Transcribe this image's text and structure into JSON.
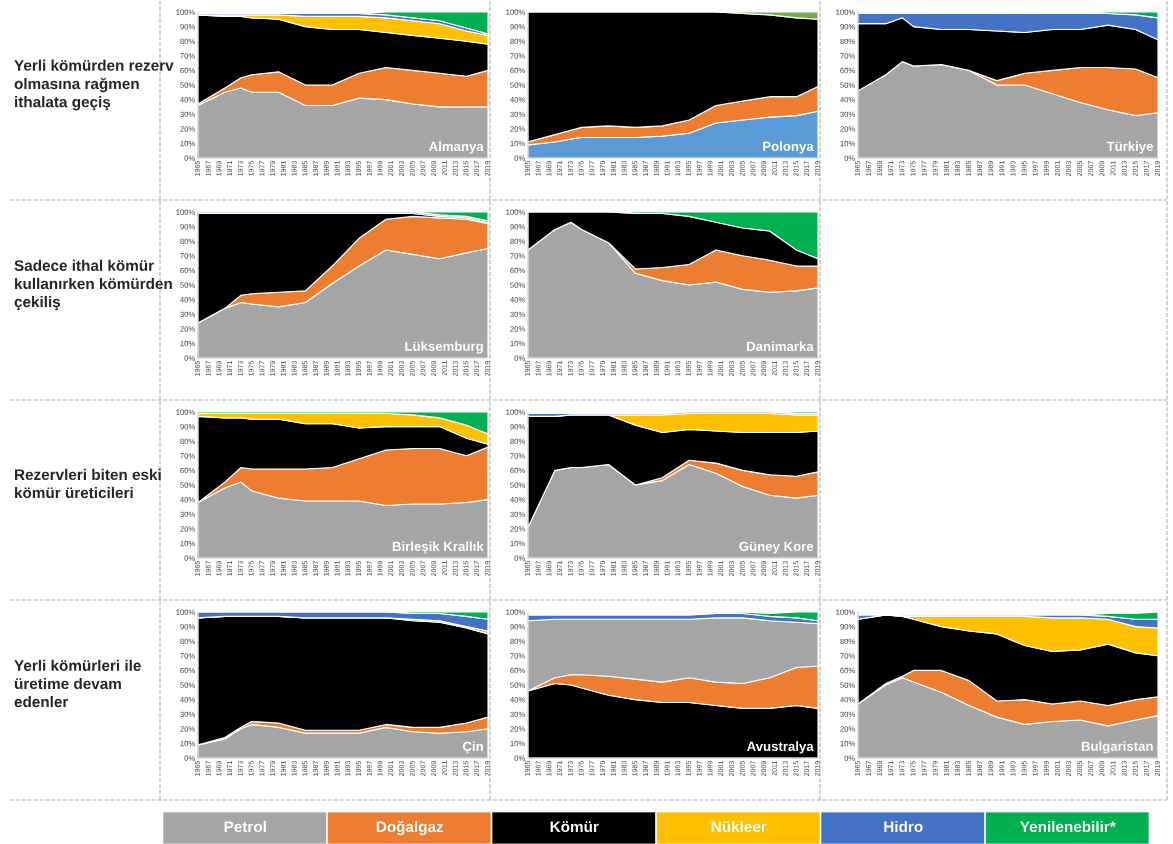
{
  "chart_data": [
    {
      "type": "area",
      "stacked": true,
      "legend": "bottom",
      "x": [
        1965,
        1970,
        1973,
        1975,
        1980,
        1985,
        1990,
        1995,
        2000,
        2005,
        2010,
        2015,
        2019
      ],
      "xlim": [
        1965,
        2019
      ],
      "ylim": [
        0,
        100
      ],
      "yticks": [
        {
          "value": 0,
          "label": "0%"
        },
        {
          "value": 10,
          "label": "10%"
        },
        {
          "value": 20,
          "label": "20%"
        },
        {
          "value": 30,
          "label": "30%"
        },
        {
          "value": 40,
          "label": "40%"
        },
        {
          "value": 50,
          "label": "50%"
        },
        {
          "value": 60,
          "label": "60%"
        },
        {
          "value": 70,
          "label": "70%"
        },
        {
          "value": 80,
          "label": "80%"
        },
        {
          "value": 90,
          "label": "90%"
        },
        {
          "value": 100,
          "label": "100%"
        }
      ],
      "xticks": [
        1965,
        1967,
        1969,
        1971,
        1973,
        1975,
        1977,
        1979,
        1981,
        1983,
        1985,
        1987,
        1989,
        1991,
        1993,
        1995,
        1997,
        1999,
        2001,
        2003,
        2005,
        2007,
        2009,
        2011,
        2013,
        2015,
        2017,
        2019
      ],
      "annotations": [
        "Yerli kömürden rezerv olmasına rağmen ithalata geçiş",
        "Almanya"
      ],
      "series": [
        {
          "name": "Petrol",
          "color": "#a5a5a5",
          "values": [
            36,
            45,
            48,
            45,
            45,
            36,
            36,
            41,
            40,
            37,
            35,
            35,
            35
          ]
        },
        {
          "name": "Doğalgaz",
          "color": "#ed7d31",
          "values": [
            1,
            3,
            7,
            12,
            14,
            14,
            14,
            17,
            22,
            23,
            23,
            21,
            25
          ]
        },
        {
          "name": "Kömür",
          "color": "#000000",
          "values": [
            61,
            49,
            42,
            39,
            36,
            40,
            38,
            30,
            24,
            24,
            24,
            24,
            18
          ]
        },
        {
          "name": "Nükleer",
          "color": "#ffc000",
          "values": [
            0,
            1,
            1,
            2,
            3,
            7,
            9,
            9,
            10,
            10,
            10,
            7,
            6
          ]
        },
        {
          "name": "Hidro",
          "color": "#4472c4",
          "values": [
            1,
            1,
            1,
            1,
            1,
            2,
            2,
            2,
            2,
            2,
            2,
            2,
            1
          ]
        },
        {
          "name": "Yenilenebilir*",
          "color": "#00b050",
          "values": [
            0,
            0,
            0,
            0,
            0,
            0,
            0,
            0,
            2,
            4,
            6,
            11,
            15
          ]
        }
      ]
    },
    {
      "type": "area",
      "stacked": true,
      "x": [
        1965,
        1970,
        1973,
        1975,
        1980,
        1985,
        1990,
        1995,
        2000,
        2005,
        2010,
        2015,
        2019
      ],
      "xlim": [
        1965,
        2019
      ],
      "ylim": [
        0,
        100
      ],
      "yticks": [
        {
          "value": 0,
          "label": "0%"
        },
        {
          "value": 10,
          "label": "10%"
        },
        {
          "value": 20,
          "label": "20%"
        },
        {
          "value": 30,
          "label": "30%"
        },
        {
          "value": 40,
          "label": "40%"
        },
        {
          "value": 50,
          "label": "50%"
        },
        {
          "value": 60,
          "label": "60%"
        },
        {
          "value": 70,
          "label": "70%"
        },
        {
          "value": 80,
          "label": "80%"
        },
        {
          "value": 90,
          "label": "90%"
        },
        {
          "value": 100,
          "label": "100%"
        }
      ],
      "xticks": [
        1965,
        1967,
        1969,
        1971,
        1973,
        1975,
        1977,
        1979,
        1981,
        1983,
        1985,
        1987,
        1989,
        1991,
        1993,
        1995,
        1997,
        1999,
        2001,
        2003,
        2005,
        2007,
        2009,
        2011,
        2013,
        2015,
        2017,
        2019
      ],
      "annotations": [
        "Polonya"
      ],
      "series": [
        {
          "color": "#5b9bd5",
          "values": [
            9,
            11,
            13,
            14,
            14,
            14,
            15,
            17,
            24,
            26,
            28,
            29,
            32
          ]
        },
        {
          "color": "#ed7d31",
          "values": [
            2,
            5,
            6,
            7,
            8,
            7,
            7,
            9,
            12,
            13,
            14,
            13,
            17
          ]
        },
        {
          "color": "#000000",
          "values": [
            89,
            84,
            81,
            79,
            78,
            79,
            78,
            74,
            64,
            60,
            56,
            54,
            46
          ]
        },
        {
          "color": "#70ad47",
          "values": [
            0,
            0,
            0,
            0,
            0,
            0,
            0,
            0,
            0,
            1,
            2,
            4,
            5
          ]
        }
      ]
    },
    {
      "type": "area",
      "stacked": true,
      "x": [
        1965,
        1970,
        1973,
        1975,
        1980,
        1985,
        1990,
        1995,
        2000,
        2005,
        2010,
        2015,
        2019
      ],
      "xlim": [
        1965,
        2019
      ],
      "ylim": [
        0,
        100
      ],
      "yticks": [
        {
          "value": 0,
          "label": "0%"
        },
        {
          "value": 10,
          "label": "10%"
        },
        {
          "value": 20,
          "label": "20%"
        },
        {
          "value": 30,
          "label": "30%"
        },
        {
          "value": 40,
          "label": "40%"
        },
        {
          "value": 50,
          "label": "50%"
        },
        {
          "value": 60,
          "label": "60%"
        },
        {
          "value": 70,
          "label": "70%"
        },
        {
          "value": 80,
          "label": "80%"
        },
        {
          "value": 90,
          "label": "90%"
        },
        {
          "value": 100,
          "label": "100%"
        }
      ],
      "xticks": [
        1965,
        1967,
        1969,
        1971,
        1973,
        1975,
        1977,
        1979,
        1981,
        1983,
        1985,
        1987,
        1989,
        1991,
        1993,
        1995,
        1997,
        1999,
        2001,
        2003,
        2005,
        2007,
        2009,
        2011,
        2013,
        2015,
        2017,
        2019
      ],
      "annotations": [
        "Türkiye"
      ],
      "series": [
        {
          "color": "#a5a5a5",
          "values": [
            46,
            57,
            66,
            63,
            64,
            60,
            50,
            50,
            44,
            38,
            33,
            29,
            31
          ]
        },
        {
          "color": "#ed7d31",
          "values": [
            0,
            0,
            0,
            0,
            0,
            0,
            3,
            8,
            16,
            24,
            29,
            32,
            24
          ]
        },
        {
          "color": "#000000",
          "values": [
            46,
            35,
            30,
            27,
            24,
            28,
            34,
            28,
            28,
            26,
            29,
            27,
            26
          ]
        },
        {
          "color": "#4472c4",
          "values": [
            7,
            7,
            3,
            9,
            11,
            11,
            12,
            13,
            11,
            11,
            8,
            10,
            15
          ]
        },
        {
          "color": "#00b050",
          "values": [
            0,
            0,
            0,
            0,
            0,
            0,
            0,
            0,
            0,
            0,
            1,
            2,
            4
          ]
        }
      ]
    },
    {
      "type": "area",
      "stacked": true,
      "x": [
        1965,
        1970,
        1973,
        1975,
        1980,
        1985,
        1990,
        1995,
        2000,
        2005,
        2010,
        2015,
        2019
      ],
      "xlim": [
        1965,
        2019
      ],
      "ylim": [
        0,
        100
      ],
      "yticks": [
        {
          "value": 0,
          "label": "0%"
        },
        {
          "value": 10,
          "label": "10%"
        },
        {
          "value": 20,
          "label": "20%"
        },
        {
          "value": 30,
          "label": "30%"
        },
        {
          "value": 40,
          "label": "40%"
        },
        {
          "value": 50,
          "label": "50%"
        },
        {
          "value": 60,
          "label": "60%"
        },
        {
          "value": 70,
          "label": "70%"
        },
        {
          "value": 80,
          "label": "80%"
        },
        {
          "value": 90,
          "label": "90%"
        },
        {
          "value": 100,
          "label": "100%"
        }
      ],
      "xticks": [
        1965,
        1967,
        1969,
        1971,
        1973,
        1975,
        1977,
        1979,
        1981,
        1983,
        1985,
        1987,
        1989,
        1991,
        1993,
        1995,
        1997,
        1999,
        2001,
        2003,
        2005,
        2007,
        2009,
        2011,
        2013,
        2015,
        2017,
        2019
      ],
      "annotations": [
        "Sadece ithal kömür kullanırken kömürden çekiliş",
        "Lüksemburg"
      ],
      "series": [
        {
          "color": "#a5a5a5",
          "values": [
            24,
            34,
            38,
            37,
            35,
            38,
            51,
            63,
            74,
            71,
            68,
            72,
            75
          ]
        },
        {
          "color": "#ed7d31",
          "values": [
            0,
            0,
            5,
            7,
            10,
            8,
            12,
            19,
            21,
            26,
            28,
            23,
            17
          ]
        },
        {
          "color": "#000000",
          "values": [
            75,
            65,
            56,
            55,
            54,
            53,
            36,
            17,
            4,
            2,
            1,
            1,
            1
          ]
        },
        {
          "color": "#4472c4",
          "values": [
            1,
            1,
            1,
            1,
            1,
            1,
            1,
            1,
            1,
            1,
            1,
            1,
            1
          ]
        },
        {
          "color": "#00b050",
          "values": [
            0,
            0,
            0,
            0,
            0,
            0,
            0,
            0,
            0,
            0,
            2,
            3,
            6
          ]
        }
      ]
    },
    {
      "type": "area",
      "stacked": true,
      "x": [
        1965,
        1970,
        1973,
        1975,
        1980,
        1985,
        1990,
        1995,
        2000,
        2005,
        2010,
        2015,
        2019
      ],
      "xlim": [
        1965,
        2019
      ],
      "ylim": [
        0,
        100
      ],
      "yticks": [
        {
          "value": 0,
          "label": "0%"
        },
        {
          "value": 10,
          "label": "10%"
        },
        {
          "value": 20,
          "label": "20%"
        },
        {
          "value": 30,
          "label": "30%"
        },
        {
          "value": 40,
          "label": "40%"
        },
        {
          "value": 50,
          "label": "50%"
        },
        {
          "value": 60,
          "label": "60%"
        },
        {
          "value": 70,
          "label": "70%"
        },
        {
          "value": 80,
          "label": "80%"
        },
        {
          "value": 90,
          "label": "90%"
        },
        {
          "value": 100,
          "label": "100%"
        }
      ],
      "xticks": [
        1965,
        1967,
        1969,
        1971,
        1973,
        1975,
        1977,
        1979,
        1981,
        1983,
        1985,
        1987,
        1989,
        1991,
        1993,
        1995,
        1997,
        1999,
        2001,
        2003,
        2005,
        2007,
        2009,
        2011,
        2013,
        2015,
        2017,
        2019
      ],
      "annotations": [
        "Danimarka"
      ],
      "series": [
        {
          "color": "#a5a5a5",
          "values": [
            74,
            88,
            93,
            88,
            79,
            58,
            53,
            50,
            52,
            47,
            45,
            46,
            48
          ]
        },
        {
          "color": "#ed7d31",
          "values": [
            0,
            0,
            0,
            0,
            0,
            3,
            9,
            14,
            22,
            23,
            22,
            17,
            15
          ]
        },
        {
          "color": "#000000",
          "values": [
            26,
            12,
            7,
            12,
            21,
            38,
            37,
            33,
            19,
            19,
            20,
            11,
            5
          ]
        },
        {
          "color": "#00b050",
          "values": [
            0,
            0,
            0,
            0,
            0,
            1,
            1,
            3,
            7,
            11,
            13,
            26,
            32
          ]
        }
      ]
    },
    {
      "type": "area",
      "stacked": true,
      "x": [
        1965,
        1970,
        1973,
        1975,
        1980,
        1985,
        1990,
        1995,
        2000,
        2005,
        2010,
        2015,
        2019
      ],
      "xlim": [
        1965,
        2019
      ],
      "ylim": [
        0,
        100
      ],
      "yticks": [
        {
          "value": 0,
          "label": "0%"
        },
        {
          "value": 10,
          "label": "10%"
        },
        {
          "value": 20,
          "label": "20%"
        },
        {
          "value": 30,
          "label": "30%"
        },
        {
          "value": 40,
          "label": "40%"
        },
        {
          "value": 50,
          "label": "50%"
        },
        {
          "value": 60,
          "label": "60%"
        },
        {
          "value": 70,
          "label": "70%"
        },
        {
          "value": 80,
          "label": "80%"
        },
        {
          "value": 90,
          "label": "90%"
        },
        {
          "value": 100,
          "label": "100%"
        }
      ],
      "xticks": [
        1965,
        1967,
        1969,
        1971,
        1973,
        1975,
        1977,
        1979,
        1981,
        1983,
        1985,
        1987,
        1989,
        1991,
        1993,
        1995,
        1997,
        1999,
        2001,
        2003,
        2005,
        2007,
        2009,
        2011,
        2013,
        2015,
        2017,
        2019
      ],
      "annotations": [
        "Rezervleri biten eski kömür üreticileri",
        "Birleşik Krallık"
      ],
      "series": [
        {
          "color": "#a5a5a5",
          "values": [
            38,
            48,
            52,
            46,
            41,
            39,
            39,
            39,
            36,
            37,
            37,
            38,
            40
          ]
        },
        {
          "color": "#ed7d31",
          "values": [
            0,
            4,
            10,
            15,
            20,
            22,
            23,
            29,
            38,
            38,
            38,
            32,
            36
          ]
        },
        {
          "color": "#000000",
          "values": [
            59,
            44,
            34,
            34,
            34,
            31,
            30,
            21,
            16,
            15,
            15,
            12,
            2
          ]
        },
        {
          "color": "#ffc000",
          "values": [
            2,
            3,
            3,
            4,
            4,
            7,
            7,
            10,
            9,
            8,
            6,
            9,
            7
          ]
        },
        {
          "color": "#00b050",
          "values": [
            1,
            1,
            1,
            1,
            1,
            1,
            1,
            1,
            1,
            2,
            4,
            9,
            15
          ]
        }
      ]
    },
    {
      "type": "area",
      "stacked": true,
      "x": [
        1965,
        1970,
        1973,
        1975,
        1980,
        1985,
        1990,
        1995,
        2000,
        2005,
        2010,
        2015,
        2019
      ],
      "xlim": [
        1965,
        2019
      ],
      "ylim": [
        0,
        100
      ],
      "yticks": [
        {
          "value": 0,
          "label": "0%"
        },
        {
          "value": 10,
          "label": "10%"
        },
        {
          "value": 20,
          "label": "20%"
        },
        {
          "value": 30,
          "label": "30%"
        },
        {
          "value": 40,
          "label": "40%"
        },
        {
          "value": 50,
          "label": "50%"
        },
        {
          "value": 60,
          "label": "60%"
        },
        {
          "value": 70,
          "label": "70%"
        },
        {
          "value": 80,
          "label": "80%"
        },
        {
          "value": 90,
          "label": "90%"
        },
        {
          "value": 100,
          "label": "100%"
        }
      ],
      "xticks": [
        1965,
        1967,
        1969,
        1971,
        1973,
        1975,
        1977,
        1979,
        1981,
        1983,
        1985,
        1987,
        1989,
        1991,
        1993,
        1995,
        1997,
        1999,
        2001,
        2003,
        2005,
        2007,
        2009,
        2011,
        2013,
        2015,
        2017,
        2019
      ],
      "annotations": [
        "Güney Kore"
      ],
      "series": [
        {
          "color": "#a5a5a5",
          "values": [
            21,
            60,
            62,
            62,
            64,
            50,
            53,
            64,
            58,
            49,
            43,
            41,
            43
          ]
        },
        {
          "color": "#ed7d31",
          "values": [
            0,
            0,
            0,
            0,
            0,
            0,
            2,
            3,
            7,
            11,
            14,
            15,
            16
          ]
        },
        {
          "color": "#000000",
          "values": [
            76,
            37,
            36,
            36,
            34,
            41,
            31,
            21,
            22,
            26,
            29,
            30,
            28
          ]
        },
        {
          "color": "#ffc000",
          "values": [
            0,
            0,
            0,
            0,
            0,
            7,
            12,
            11,
            12,
            13,
            13,
            12,
            11
          ]
        },
        {
          "color": "#4472c4",
          "values": [
            2,
            2,
            1,
            1,
            1,
            1,
            1,
            1,
            1,
            1,
            1,
            1,
            1
          ]
        },
        {
          "color": "#00b050",
          "values": [
            0,
            0,
            0,
            0,
            0,
            0,
            0,
            0,
            0,
            0,
            0,
            1,
            1
          ]
        }
      ]
    },
    {
      "type": "area",
      "stacked": true,
      "x": [
        1965,
        1970,
        1973,
        1975,
        1980,
        1985,
        1990,
        1995,
        2000,
        2005,
        2010,
        2015,
        2019
      ],
      "xlim": [
        1965,
        2019
      ],
      "ylim": [
        0,
        100
      ],
      "yticks": [
        {
          "value": 0,
          "label": "0%"
        },
        {
          "value": 10,
          "label": "10%"
        },
        {
          "value": 20,
          "label": "20%"
        },
        {
          "value": 30,
          "label": "30%"
        },
        {
          "value": 40,
          "label": "40%"
        },
        {
          "value": 50,
          "label": "50%"
        },
        {
          "value": 60,
          "label": "60%"
        },
        {
          "value": 70,
          "label": "70%"
        },
        {
          "value": 80,
          "label": "80%"
        },
        {
          "value": 90,
          "label": "90%"
        },
        {
          "value": 100,
          "label": "100%"
        }
      ],
      "xticks": [
        1965,
        1967,
        1969,
        1971,
        1973,
        1975,
        1977,
        1979,
        1981,
        1983,
        1985,
        1987,
        1989,
        1991,
        1993,
        1995,
        1997,
        1999,
        2001,
        2003,
        2005,
        2007,
        2009,
        2011,
        2013,
        2015,
        2017,
        2019
      ],
      "annotations": [
        "Yerli kömürleri ile üretime devam edenler",
        "Çin"
      ],
      "series": [
        {
          "color": "#a5a5a5",
          "values": [
            9,
            13,
            20,
            23,
            21,
            17,
            17,
            17,
            21,
            18,
            17,
            18,
            20
          ]
        },
        {
          "color": "#ed7d31",
          "values": [
            0,
            1,
            1,
            2,
            3,
            2,
            2,
            2,
            2,
            3,
            4,
            6,
            8
          ]
        },
        {
          "color": "#000000",
          "values": [
            87,
            83,
            76,
            72,
            73,
            77,
            77,
            77,
            73,
            73,
            72,
            65,
            57
          ]
        },
        {
          "color": "#ffc000",
          "values": [
            0,
            0,
            0,
            0,
            0,
            0,
            0,
            0,
            0,
            1,
            1,
            1,
            2
          ]
        },
        {
          "color": "#4472c4",
          "values": [
            4,
            3,
            3,
            3,
            3,
            4,
            4,
            4,
            4,
            4,
            5,
            7,
            8
          ]
        },
        {
          "color": "#00b050",
          "values": [
            0,
            0,
            0,
            0,
            0,
            0,
            0,
            0,
            0,
            1,
            1,
            3,
            5
          ]
        }
      ]
    },
    {
      "type": "area",
      "stacked": true,
      "x": [
        1965,
        1970,
        1973,
        1975,
        1980,
        1985,
        1990,
        1995,
        2000,
        2005,
        2010,
        2015,
        2019
      ],
      "xlim": [
        1965,
        2019
      ],
      "ylim": [
        0,
        100
      ],
      "yticks": [
        {
          "value": 0,
          "label": "0%"
        },
        {
          "value": 10,
          "label": "10%"
        },
        {
          "value": 20,
          "label": "20%"
        },
        {
          "value": 30,
          "label": "30%"
        },
        {
          "value": 40,
          "label": "40%"
        },
        {
          "value": 50,
          "label": "50%"
        },
        {
          "value": 60,
          "label": "60%"
        },
        {
          "value": 70,
          "label": "70%"
        },
        {
          "value": 80,
          "label": "80%"
        },
        {
          "value": 90,
          "label": "90%"
        },
        {
          "value": 100,
          "label": "100%"
        }
      ],
      "xticks": [
        1965,
        1967,
        1969,
        1971,
        1973,
        1975,
        1977,
        1979,
        1981,
        1983,
        1985,
        1987,
        1989,
        1991,
        1993,
        1995,
        1997,
        1999,
        2001,
        2003,
        2005,
        2007,
        2009,
        2011,
        2013,
        2015,
        2017,
        2019
      ],
      "annotations": [
        "Avustralya"
      ],
      "series": [
        {
          "color": "#000000",
          "values": [
            46,
            51,
            50,
            48,
            43,
            40,
            38,
            38,
            36,
            34,
            34,
            36,
            34
          ]
        },
        {
          "color": "#ed7d31",
          "values": [
            0,
            4,
            7,
            9,
            13,
            14,
            14,
            17,
            16,
            17,
            21,
            26,
            29
          ]
        },
        {
          "color": "#a5a5a5",
          "values": [
            48,
            40,
            38,
            38,
            39,
            41,
            43,
            40,
            44,
            45,
            39,
            31,
            29
          ]
        },
        {
          "color": "#4472c4",
          "values": [
            4,
            3,
            3,
            3,
            3,
            3,
            3,
            3,
            3,
            3,
            3,
            3,
            2
          ]
        },
        {
          "color": "#00b050",
          "values": [
            0,
            0,
            0,
            0,
            0,
            0,
            0,
            0,
            0,
            1,
            2,
            4,
            6
          ]
        }
      ]
    },
    {
      "type": "area",
      "stacked": true,
      "x": [
        1965,
        1970,
        1973,
        1975,
        1980,
        1985,
        1990,
        1995,
        2000,
        2005,
        2010,
        2015,
        2019
      ],
      "xlim": [
        1965,
        2019
      ],
      "ylim": [
        0,
        100
      ],
      "yticks": [
        {
          "value": 0,
          "label": "0%"
        },
        {
          "value": 10,
          "label": "10%"
        },
        {
          "value": 20,
          "label": "20%"
        },
        {
          "value": 30,
          "label": "30%"
        },
        {
          "value": 40,
          "label": "40%"
        },
        {
          "value": 50,
          "label": "50%"
        },
        {
          "value": 60,
          "label": "60%"
        },
        {
          "value": 70,
          "label": "70%"
        },
        {
          "value": 80,
          "label": "80%"
        },
        {
          "value": 90,
          "label": "90%"
        },
        {
          "value": 100,
          "label": "100%"
        }
      ],
      "xticks": [
        1965,
        1967,
        1969,
        1971,
        1973,
        1975,
        1977,
        1979,
        1981,
        1983,
        1985,
        1987,
        1989,
        1991,
        1993,
        1995,
        1997,
        1999,
        2001,
        2003,
        2005,
        2007,
        2009,
        2011,
        2013,
        2015,
        2017,
        2019
      ],
      "annotations": [
        "Bulgaristan"
      ],
      "series": [
        {
          "color": "#a5a5a5",
          "values": [
            37,
            50,
            55,
            52,
            45,
            36,
            28,
            23,
            25,
            26,
            22,
            26,
            29
          ]
        },
        {
          "color": "#ed7d31",
          "values": [
            0,
            1,
            1,
            8,
            15,
            17,
            11,
            17,
            12,
            13,
            14,
            14,
            13
          ]
        },
        {
          "color": "#000000",
          "values": [
            58,
            47,
            41,
            35,
            30,
            34,
            46,
            37,
            36,
            35,
            42,
            32,
            28
          ]
        },
        {
          "color": "#ffc000",
          "values": [
            0,
            0,
            0,
            2,
            7,
            10,
            12,
            20,
            23,
            22,
            17,
            18,
            19
          ]
        },
        {
          "color": "#4472c4",
          "values": [
            3,
            0,
            1,
            1,
            1,
            1,
            1,
            1,
            2,
            2,
            2,
            5,
            6
          ]
        },
        {
          "color": "#00b050",
          "values": [
            0,
            0,
            0,
            0,
            0,
            0,
            0,
            0,
            0,
            0,
            2,
            4,
            5
          ]
        }
      ]
    }
  ]
}
